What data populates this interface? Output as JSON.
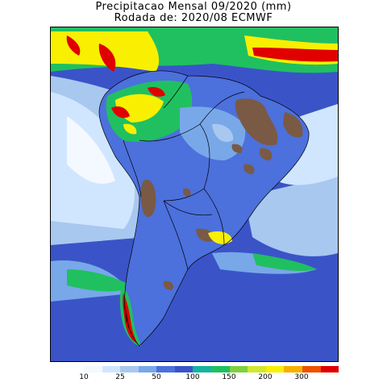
{
  "header": {
    "title_line1": "Precipitacao Mensal 09/2020 (mm)",
    "title_line2": "Rodada de: 2020/08 ECMWF"
  },
  "legend": {
    "ticks": [
      "10",
      "25",
      "50",
      "100",
      "150",
      "200",
      "300"
    ],
    "colors": [
      "#f4f8ff",
      "#d0e6ff",
      "#a8c8f0",
      "#78a8e8",
      "#4c70dc",
      "#3a54c8",
      "#14b4a0",
      "#20c060",
      "#80d040",
      "#d0e830",
      "#f8f000",
      "#f8b000",
      "#f05000",
      "#e00000"
    ]
  },
  "map": {
    "region": "South America",
    "colors": {
      "ocean_low": "#3a54c8",
      "dry": "#7a5a44",
      "very_low": "#f4f8ff",
      "low": "#a8c8f0",
      "moderate": "#4c70dc",
      "high": "#20c060",
      "very_high": "#f8f000",
      "extreme": "#e00000"
    }
  }
}
